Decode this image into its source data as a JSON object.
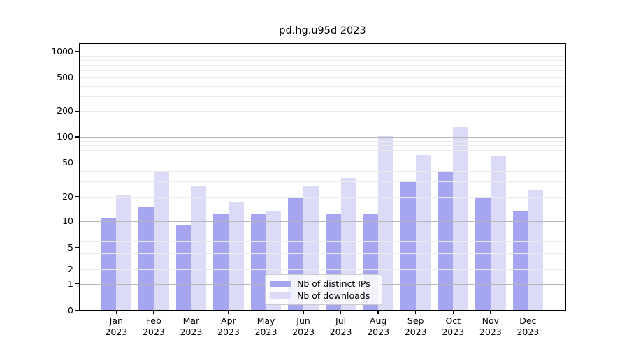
{
  "figure": {
    "title": "pd.hg.u95d 2023"
  },
  "chart_data": {
    "type": "bar",
    "title": "pd.hg.u95d 2023",
    "categories": [
      "Jan",
      "Feb",
      "Mar",
      "Apr",
      "May",
      "Jun",
      "Jul",
      "Aug",
      "Sep",
      "Oct",
      "Nov",
      "Dec"
    ],
    "year": "2023",
    "series": [
      {
        "name": "Nb of distinct IPs",
        "color": "#a5a5f0",
        "values": [
          11,
          15,
          9,
          12,
          12,
          20,
          12,
          12,
          30,
          40,
          20,
          13
        ]
      },
      {
        "name": "Nb of downloads",
        "color": "#dbdbf7",
        "values": [
          21,
          40,
          27,
          17,
          13,
          27,
          33,
          101,
          62,
          130,
          60,
          24
        ]
      }
    ],
    "y_axis": {
      "scale": "symlog",
      "ticks": [
        0,
        1,
        2,
        5,
        10,
        20,
        50,
        100,
        200,
        500,
        1000
      ],
      "major_gridlines": [
        1,
        10,
        100,
        1000
      ],
      "range": [
        0,
        1000
      ]
    },
    "xlabel": "",
    "ylabel": "",
    "grid": true,
    "legend_position": "bottom-center"
  },
  "colors": {
    "background": "#ffffff",
    "axis": "#000000",
    "text": "#000000",
    "major_grid": "#b6b6b6",
    "minor_grid": "#ebebeb",
    "legend_border": "#cccccc",
    "series_ips": "#a5a5f0",
    "series_downloads": "#dbdbf7"
  }
}
